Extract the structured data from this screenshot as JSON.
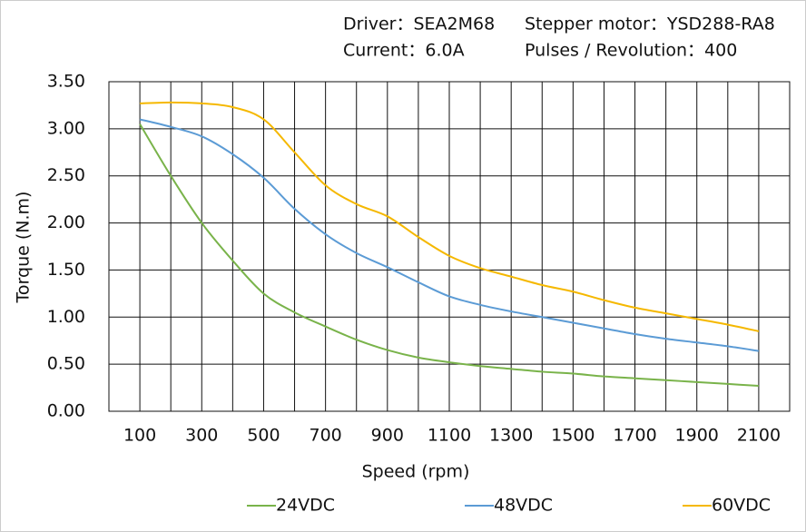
{
  "chart_data": {
    "type": "line",
    "annotations": [
      "Driver：SEA2M68",
      "Stepper motor：YSD288-RA8",
      "Current：6.0A",
      "Pulses / Revolution：400"
    ],
    "x_label": "Speed  (rpm)",
    "y_label": "Torque (N.m)",
    "x": [
      100,
      200,
      300,
      400,
      500,
      600,
      700,
      800,
      900,
      1000,
      1100,
      1200,
      1300,
      1400,
      1500,
      1600,
      1700,
      1800,
      1900,
      2000,
      2100
    ],
    "series": [
      {
        "name": "24VDC",
        "color": "#79b34a",
        "values": [
          3.05,
          2.5,
          2.0,
          1.6,
          1.25,
          1.05,
          0.9,
          0.76,
          0.65,
          0.57,
          0.52,
          0.48,
          0.45,
          0.42,
          0.4,
          0.37,
          0.35,
          0.33,
          0.31,
          0.29,
          0.27
        ]
      },
      {
        "name": "48VDC",
        "color": "#5b9bd5",
        "values": [
          3.1,
          3.02,
          2.92,
          2.73,
          2.48,
          2.15,
          1.88,
          1.68,
          1.53,
          1.37,
          1.22,
          1.13,
          1.06,
          1.0,
          0.94,
          0.88,
          0.82,
          0.77,
          0.73,
          0.69,
          0.64
        ]
      },
      {
        "name": "60VDC",
        "color": "#f5b800",
        "values": [
          3.27,
          3.28,
          3.27,
          3.23,
          3.1,
          2.75,
          2.4,
          2.2,
          2.07,
          1.85,
          1.65,
          1.52,
          1.43,
          1.34,
          1.27,
          1.18,
          1.1,
          1.04,
          0.98,
          0.92,
          0.85
        ]
      }
    ],
    "xlim": [
      0,
      2200
    ],
    "xticks": [
      100,
      300,
      500,
      700,
      900,
      1100,
      1300,
      1500,
      1700,
      1900,
      2100
    ],
    "xminor": [
      200,
      400,
      600,
      800,
      1000,
      1200,
      1400,
      1600,
      1800,
      2000
    ],
    "ylim": [
      0,
      3.5
    ],
    "yticks": [
      {
        "value": 0,
        "label": "0.00"
      },
      {
        "value": 0.5,
        "label": "0.50"
      },
      {
        "value": 1,
        "label": "1.00"
      },
      {
        "value": 1.5,
        "label": "1.50"
      },
      {
        "value": 2,
        "label": "2.00"
      },
      {
        "value": 2.5,
        "label": "2.50"
      },
      {
        "value": 3,
        "label": "3.00"
      },
      {
        "value": 3.5,
        "label": "3.50"
      }
    ],
    "grid": true,
    "legend": "bottom"
  }
}
